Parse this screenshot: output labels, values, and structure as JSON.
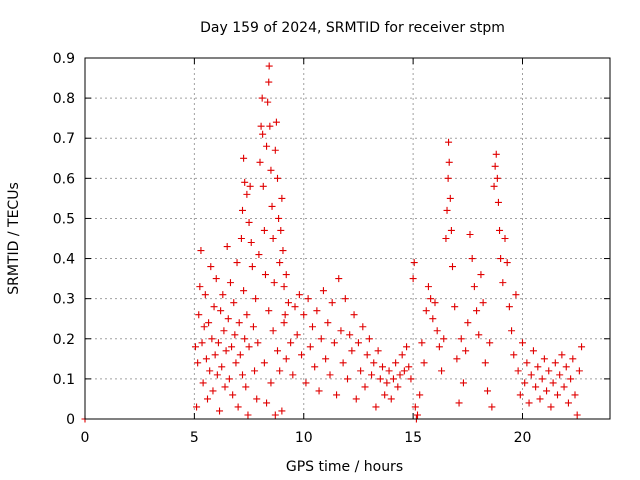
{
  "chart_data": {
    "type": "scatter",
    "title": "Day 159 of 2024, SRMTID for receiver stpm",
    "xlabel": "GPS time / hours",
    "ylabel": "SRMTID / TECUs",
    "xlim": [
      0,
      24
    ],
    "ylim": [
      0,
      0.9
    ],
    "xticks": [
      0,
      5,
      10,
      15,
      20
    ],
    "xtick_labels": [
      "0",
      "5",
      "10",
      "15",
      "20"
    ],
    "yticks": [
      0,
      0.1,
      0.2,
      0.3,
      0.4,
      0.5,
      0.6,
      0.7,
      0.8,
      0.9
    ],
    "ytick_labels": [
      "0",
      "0.1",
      "0.2",
      "0.3",
      "0.4",
      "0.5",
      "0.6",
      "0.7",
      "0.8",
      "0.9"
    ],
    "grid": true,
    "marker": "+",
    "color": "#e00000",
    "series": [
      {
        "name": "SRMTID",
        "points": [
          [
            0.0,
            0.0
          ],
          [
            5.05,
            0.18
          ],
          [
            5.1,
            0.03
          ],
          [
            5.15,
            0.14
          ],
          [
            5.2,
            0.26
          ],
          [
            5.25,
            0.33
          ],
          [
            5.3,
            0.42
          ],
          [
            5.35,
            0.19
          ],
          [
            5.4,
            0.09
          ],
          [
            5.45,
            0.23
          ],
          [
            5.5,
            0.31
          ],
          [
            5.55,
            0.15
          ],
          [
            5.6,
            0.05
          ],
          [
            5.65,
            0.24
          ],
          [
            5.7,
            0.12
          ],
          [
            5.75,
            0.38
          ],
          [
            5.8,
            0.2
          ],
          [
            5.85,
            0.07
          ],
          [
            5.9,
            0.28
          ],
          [
            5.95,
            0.16
          ],
          [
            6.0,
            0.35
          ],
          [
            6.05,
            0.11
          ],
          [
            6.1,
            0.19
          ],
          [
            6.15,
            0.02
          ],
          [
            6.2,
            0.27
          ],
          [
            6.25,
            0.13
          ],
          [
            6.3,
            0.31
          ],
          [
            6.35,
            0.22
          ],
          [
            6.4,
            0.08
          ],
          [
            6.45,
            0.17
          ],
          [
            6.5,
            0.43
          ],
          [
            6.55,
            0.25
          ],
          [
            6.6,
            0.1
          ],
          [
            6.65,
            0.34
          ],
          [
            6.7,
            0.18
          ],
          [
            6.75,
            0.06
          ],
          [
            6.8,
            0.29
          ],
          [
            6.85,
            0.21
          ],
          [
            6.9,
            0.14
          ],
          [
            6.95,
            0.39
          ],
          [
            7.0,
            0.03
          ],
          [
            7.05,
            0.24
          ],
          [
            7.1,
            0.16
          ],
          [
            7.15,
            0.45
          ],
          [
            7.2,
            0.11
          ],
          [
            7.25,
            0.32
          ],
          [
            7.3,
            0.2
          ],
          [
            7.35,
            0.08
          ],
          [
            7.4,
            0.26
          ],
          [
            7.45,
            0.01
          ],
          [
            7.5,
            0.18
          ],
          [
            7.2,
            0.52
          ],
          [
            7.25,
            0.65
          ],
          [
            7.3,
            0.59
          ],
          [
            7.4,
            0.56
          ],
          [
            7.5,
            0.49
          ],
          [
            7.55,
            0.58
          ],
          [
            7.6,
            0.44
          ],
          [
            7.65,
            0.38
          ],
          [
            7.7,
            0.23
          ],
          [
            7.75,
            0.12
          ],
          [
            7.8,
            0.3
          ],
          [
            7.85,
            0.05
          ],
          [
            7.9,
            0.19
          ],
          [
            7.95,
            0.41
          ],
          [
            8.0,
            0.64
          ],
          [
            8.05,
            0.73
          ],
          [
            8.1,
            0.8
          ],
          [
            8.12,
            0.71
          ],
          [
            8.15,
            0.58
          ],
          [
            8.2,
            0.47
          ],
          [
            8.25,
            0.36
          ],
          [
            8.3,
            0.68
          ],
          [
            8.35,
            0.79
          ],
          [
            8.4,
            0.84
          ],
          [
            8.42,
            0.88
          ],
          [
            8.45,
            0.73
          ],
          [
            8.5,
            0.62
          ],
          [
            8.55,
            0.53
          ],
          [
            8.6,
            0.45
          ],
          [
            8.65,
            0.34
          ],
          [
            8.7,
            0.67
          ],
          [
            8.75,
            0.74
          ],
          [
            8.8,
            0.6
          ],
          [
            8.85,
            0.5
          ],
          [
            8.9,
            0.39
          ],
          [
            8.95,
            0.47
          ],
          [
            9.0,
            0.55
          ],
          [
            9.05,
            0.42
          ],
          [
            9.1,
            0.33
          ],
          [
            9.15,
            0.26
          ],
          [
            9.2,
            0.36
          ],
          [
            8.2,
            0.14
          ],
          [
            8.3,
            0.04
          ],
          [
            8.4,
            0.27
          ],
          [
            8.5,
            0.09
          ],
          [
            8.6,
            0.22
          ],
          [
            8.7,
            0.01
          ],
          [
            8.8,
            0.17
          ],
          [
            8.9,
            0.12
          ],
          [
            9.0,
            0.02
          ],
          [
            9.1,
            0.24
          ],
          [
            9.2,
            0.15
          ],
          [
            9.3,
            0.29
          ],
          [
            9.4,
            0.19
          ],
          [
            9.5,
            0.11
          ],
          [
            9.6,
            0.28
          ],
          [
            9.7,
            0.21
          ],
          [
            9.8,
            0.31
          ],
          [
            9.9,
            0.16
          ],
          [
            10.0,
            0.26
          ],
          [
            10.1,
            0.09
          ],
          [
            10.2,
            0.3
          ],
          [
            10.3,
            0.18
          ],
          [
            10.4,
            0.23
          ],
          [
            10.5,
            0.13
          ],
          [
            10.6,
            0.27
          ],
          [
            10.7,
            0.07
          ],
          [
            10.8,
            0.2
          ],
          [
            10.9,
            0.32
          ],
          [
            11.0,
            0.15
          ],
          [
            11.1,
            0.24
          ],
          [
            11.2,
            0.11
          ],
          [
            11.3,
            0.29
          ],
          [
            11.4,
            0.19
          ],
          [
            11.5,
            0.06
          ],
          [
            11.6,
            0.35
          ],
          [
            11.7,
            0.22
          ],
          [
            11.8,
            0.14
          ],
          [
            11.9,
            0.3
          ],
          [
            12.0,
            0.1
          ],
          [
            12.1,
            0.21
          ],
          [
            12.2,
            0.17
          ],
          [
            12.3,
            0.26
          ],
          [
            12.4,
            0.05
          ],
          [
            12.5,
            0.19
          ],
          [
            12.6,
            0.12
          ],
          [
            12.7,
            0.23
          ],
          [
            12.8,
            0.08
          ],
          [
            12.9,
            0.16
          ],
          [
            13.0,
            0.2
          ],
          [
            13.1,
            0.11
          ],
          [
            13.2,
            0.14
          ],
          [
            13.3,
            0.03
          ],
          [
            13.4,
            0.17
          ],
          [
            13.5,
            0.1
          ],
          [
            13.6,
            0.13
          ],
          [
            13.7,
            0.06
          ],
          [
            13.8,
            0.09
          ],
          [
            13.9,
            0.12
          ],
          [
            14.0,
            0.05
          ],
          [
            14.1,
            0.1
          ],
          [
            14.2,
            0.14
          ],
          [
            14.3,
            0.08
          ],
          [
            14.4,
            0.11
          ],
          [
            14.5,
            0.16
          ],
          [
            14.6,
            0.12
          ],
          [
            14.7,
            0.18
          ],
          [
            14.8,
            0.13
          ],
          [
            14.9,
            0.1
          ],
          [
            15.0,
            0.35
          ],
          [
            15.05,
            0.39
          ],
          [
            15.1,
            0.03
          ],
          [
            15.15,
            0.0
          ],
          [
            15.2,
            0.01
          ],
          [
            15.3,
            0.06
          ],
          [
            15.4,
            0.19
          ],
          [
            15.5,
            0.14
          ],
          [
            15.6,
            0.27
          ],
          [
            15.7,
            0.33
          ],
          [
            15.8,
            0.3
          ],
          [
            15.9,
            0.25
          ],
          [
            16.0,
            0.29
          ],
          [
            16.1,
            0.22
          ],
          [
            16.2,
            0.18
          ],
          [
            16.3,
            0.12
          ],
          [
            16.4,
            0.2
          ],
          [
            16.5,
            0.45
          ],
          [
            16.55,
            0.52
          ],
          [
            16.6,
            0.6
          ],
          [
            16.62,
            0.69
          ],
          [
            16.65,
            0.64
          ],
          [
            16.7,
            0.55
          ],
          [
            16.75,
            0.47
          ],
          [
            16.8,
            0.38
          ],
          [
            16.9,
            0.28
          ],
          [
            17.0,
            0.15
          ],
          [
            17.1,
            0.04
          ],
          [
            17.2,
            0.2
          ],
          [
            17.3,
            0.09
          ],
          [
            17.4,
            0.17
          ],
          [
            17.5,
            0.24
          ],
          [
            17.6,
            0.46
          ],
          [
            17.7,
            0.4
          ],
          [
            17.8,
            0.33
          ],
          [
            17.9,
            0.27
          ],
          [
            18.0,
            0.21
          ],
          [
            18.1,
            0.36
          ],
          [
            18.2,
            0.29
          ],
          [
            18.3,
            0.14
          ],
          [
            18.4,
            0.07
          ],
          [
            18.5,
            0.19
          ],
          [
            18.6,
            0.03
          ],
          [
            18.7,
            0.58
          ],
          [
            18.75,
            0.63
          ],
          [
            18.8,
            0.66
          ],
          [
            18.85,
            0.6
          ],
          [
            18.9,
            0.54
          ],
          [
            18.95,
            0.47
          ],
          [
            19.0,
            0.4
          ],
          [
            19.1,
            0.34
          ],
          [
            19.2,
            0.45
          ],
          [
            19.3,
            0.39
          ],
          [
            19.4,
            0.28
          ],
          [
            19.5,
            0.22
          ],
          [
            19.6,
            0.16
          ],
          [
            19.7,
            0.31
          ],
          [
            19.8,
            0.12
          ],
          [
            19.9,
            0.06
          ],
          [
            20.0,
            0.19
          ],
          [
            20.1,
            0.09
          ],
          [
            20.2,
            0.14
          ],
          [
            20.3,
            0.04
          ],
          [
            20.4,
            0.11
          ],
          [
            20.5,
            0.17
          ],
          [
            20.6,
            0.08
          ],
          [
            20.7,
            0.13
          ],
          [
            20.8,
            0.05
          ],
          [
            20.9,
            0.1
          ],
          [
            21.0,
            0.15
          ],
          [
            21.1,
            0.07
          ],
          [
            21.2,
            0.12
          ],
          [
            21.3,
            0.03
          ],
          [
            21.4,
            0.09
          ],
          [
            21.5,
            0.14
          ],
          [
            21.6,
            0.06
          ],
          [
            21.7,
            0.11
          ],
          [
            21.8,
            0.16
          ],
          [
            21.9,
            0.08
          ],
          [
            22.0,
            0.13
          ],
          [
            22.1,
            0.04
          ],
          [
            22.2,
            0.1
          ],
          [
            22.3,
            0.15
          ],
          [
            22.4,
            0.06
          ],
          [
            22.5,
            0.01
          ],
          [
            22.6,
            0.12
          ],
          [
            22.7,
            0.18
          ]
        ]
      }
    ]
  }
}
